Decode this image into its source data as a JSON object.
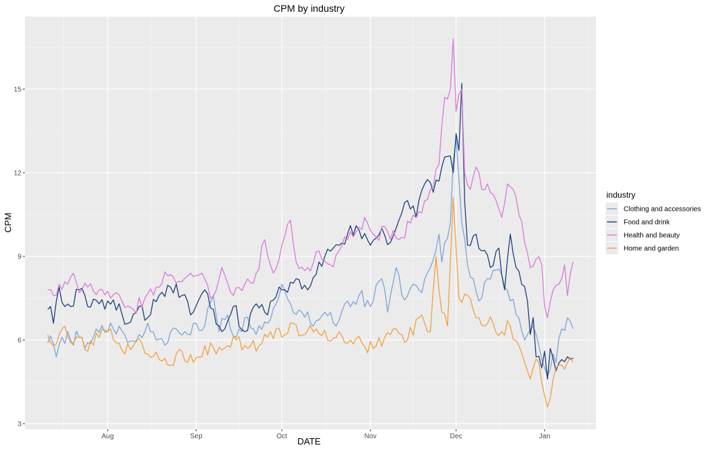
{
  "chart_data": {
    "type": "line",
    "title": "CPM by industry",
    "xlabel": "DATE",
    "ylabel": "CPM",
    "x_start": "2023-07-11",
    "x_end": "2024-01-11",
    "xlim": [
      "2023-07-03",
      "2024-01-19"
    ],
    "ylim": [
      2.8,
      17.6
    ],
    "yticks": [
      3,
      6,
      9,
      12,
      15
    ],
    "xticks": [
      {
        "label": "Aug",
        "date": "2023-08-01"
      },
      {
        "label": "Sep",
        "date": "2023-09-01"
      },
      {
        "label": "Oct",
        "date": "2023-10-01"
      },
      {
        "label": "Nov",
        "date": "2023-11-01"
      },
      {
        "label": "Dec",
        "date": "2023-12-01"
      },
      {
        "label": "Jan",
        "date": "2024-01-01"
      }
    ],
    "grid": true,
    "legend_title": "industry",
    "legend_position": "right",
    "series": [
      {
        "name": "Clothing and accessories",
        "color": "#7ba4d8",
        "keypoints": [
          [
            "2023-07-11",
            5.9
          ],
          [
            "2023-07-13",
            5.85
          ],
          [
            "2023-07-14",
            5.4
          ],
          [
            "2023-07-16",
            6.1
          ],
          [
            "2023-07-19",
            6.0
          ],
          [
            "2023-07-22",
            6.1
          ],
          [
            "2023-07-25",
            5.9
          ],
          [
            "2023-07-28",
            6.4
          ],
          [
            "2023-08-01",
            6.3
          ],
          [
            "2023-08-05",
            6.5
          ],
          [
            "2023-08-08",
            5.9
          ],
          [
            "2023-08-12",
            6.2
          ],
          [
            "2023-08-15",
            6.6
          ],
          [
            "2023-08-18",
            6.0
          ],
          [
            "2023-08-22",
            5.9
          ],
          [
            "2023-08-25",
            6.4
          ],
          [
            "2023-08-28",
            6.3
          ],
          [
            "2023-09-01",
            6.6
          ],
          [
            "2023-09-04",
            6.5
          ],
          [
            "2023-09-07",
            7.6
          ],
          [
            "2023-09-09",
            6.3
          ],
          [
            "2023-09-12",
            6.9
          ],
          [
            "2023-09-15",
            6.1
          ],
          [
            "2023-09-18",
            6.8
          ],
          [
            "2023-09-22",
            6.2
          ],
          [
            "2023-09-26",
            6.6
          ],
          [
            "2023-09-29",
            7.3
          ],
          [
            "2023-10-01",
            8.0
          ],
          [
            "2023-10-04",
            7.3
          ],
          [
            "2023-10-08",
            7.0
          ],
          [
            "2023-10-12",
            6.5
          ],
          [
            "2023-10-16",
            7.0
          ],
          [
            "2023-10-20",
            6.5
          ],
          [
            "2023-10-24",
            7.4
          ],
          [
            "2023-10-28",
            7.6
          ],
          [
            "2023-11-01",
            7.2
          ],
          [
            "2023-11-05",
            8.2
          ],
          [
            "2023-11-07",
            7.0
          ],
          [
            "2023-11-10",
            8.6
          ],
          [
            "2023-11-12",
            7.6
          ],
          [
            "2023-11-16",
            8.0
          ],
          [
            "2023-11-19",
            7.7
          ],
          [
            "2023-11-22",
            8.6
          ],
          [
            "2023-11-25",
            9.8
          ],
          [
            "2023-11-26",
            8.8
          ],
          [
            "2023-11-29",
            10.2
          ],
          [
            "2023-11-30",
            12.4
          ],
          [
            "2023-12-01",
            13.2
          ],
          [
            "2023-12-02",
            11.8
          ],
          [
            "2023-12-03",
            10.2
          ],
          [
            "2023-12-05",
            8.7
          ],
          [
            "2023-12-07",
            8.2
          ],
          [
            "2023-12-09",
            7.4
          ],
          [
            "2023-12-12",
            8.2
          ],
          [
            "2023-12-15",
            8.5
          ],
          [
            "2023-12-18",
            7.9
          ],
          [
            "2023-12-20",
            7.4
          ],
          [
            "2023-12-23",
            6.8
          ],
          [
            "2023-12-25",
            6.0
          ],
          [
            "2023-12-26",
            6.2
          ],
          [
            "2023-12-28",
            6.5
          ],
          [
            "2023-12-30",
            5.8
          ],
          [
            "2024-01-01",
            5.0
          ],
          [
            "2024-01-02",
            4.7
          ],
          [
            "2024-01-04",
            5.5
          ],
          [
            "2024-01-05",
            5.2
          ],
          [
            "2024-01-07",
            6.4
          ],
          [
            "2024-01-09",
            6.8
          ],
          [
            "2024-01-11",
            6.4
          ]
        ]
      },
      {
        "name": "Food and drink",
        "color": "#1f3d7a",
        "keypoints": [
          [
            "2023-07-11",
            7.1
          ],
          [
            "2023-07-12",
            7.2
          ],
          [
            "2023-07-13",
            6.6
          ],
          [
            "2023-07-15",
            7.9
          ],
          [
            "2023-07-17",
            7.2
          ],
          [
            "2023-07-19",
            7.2
          ],
          [
            "2023-07-22",
            7.8
          ],
          [
            "2023-07-25",
            7.2
          ],
          [
            "2023-07-29",
            7.3
          ],
          [
            "2023-08-01",
            7.4
          ],
          [
            "2023-08-05",
            7.3
          ],
          [
            "2023-08-08",
            6.6
          ],
          [
            "2023-08-12",
            7.2
          ],
          [
            "2023-08-15",
            6.8
          ],
          [
            "2023-08-19",
            7.6
          ],
          [
            "2023-08-23",
            7.9
          ],
          [
            "2023-08-27",
            7.6
          ],
          [
            "2023-08-31",
            7.0
          ],
          [
            "2023-09-04",
            7.8
          ],
          [
            "2023-09-07",
            7.1
          ],
          [
            "2023-09-10",
            6.3
          ],
          [
            "2023-09-14",
            7.2
          ],
          [
            "2023-09-18",
            6.3
          ],
          [
            "2023-09-22",
            7.3
          ],
          [
            "2023-09-26",
            6.9
          ],
          [
            "2023-09-30",
            7.9
          ],
          [
            "2023-10-02",
            7.8
          ],
          [
            "2023-10-06",
            8.2
          ],
          [
            "2023-10-10",
            7.8
          ],
          [
            "2023-10-14",
            8.8
          ],
          [
            "2023-10-19",
            9.3
          ],
          [
            "2023-10-24",
            9.8
          ],
          [
            "2023-10-27",
            10.1
          ],
          [
            "2023-11-01",
            9.4
          ],
          [
            "2023-11-05",
            10.0
          ],
          [
            "2023-11-08",
            9.5
          ],
          [
            "2023-11-11",
            10.3
          ],
          [
            "2023-11-14",
            11.0
          ],
          [
            "2023-11-17",
            10.4
          ],
          [
            "2023-11-20",
            11.6
          ],
          [
            "2023-11-23",
            11.3
          ],
          [
            "2023-11-26",
            12.2
          ],
          [
            "2023-11-29",
            12.6
          ],
          [
            "2023-11-30",
            12.0
          ],
          [
            "2023-12-01",
            13.4
          ],
          [
            "2023-12-02",
            12.8
          ],
          [
            "2023-12-03",
            15.2
          ],
          [
            "2023-12-04",
            11.0
          ],
          [
            "2023-12-05",
            9.4
          ],
          [
            "2023-12-08",
            9.8
          ],
          [
            "2023-12-10",
            9.2
          ],
          [
            "2023-12-13",
            8.6
          ],
          [
            "2023-12-16",
            9.3
          ],
          [
            "2023-12-18",
            7.8
          ],
          [
            "2023-12-20",
            9.8
          ],
          [
            "2023-12-22",
            8.6
          ],
          [
            "2023-12-24",
            8.0
          ],
          [
            "2023-12-26",
            7.4
          ],
          [
            "2023-12-27",
            6.2
          ],
          [
            "2023-12-28",
            6.8
          ],
          [
            "2023-12-29",
            5.4
          ],
          [
            "2023-12-31",
            5.0
          ],
          [
            "2024-01-01",
            5.6
          ],
          [
            "2024-01-02",
            4.6
          ],
          [
            "2024-01-03",
            5.7
          ],
          [
            "2024-01-05",
            4.9
          ],
          [
            "2024-01-07",
            5.3
          ],
          [
            "2024-01-09",
            5.4
          ],
          [
            "2024-01-11",
            5.35
          ]
        ]
      },
      {
        "name": "Health and beauty",
        "color": "#d879d8",
        "keypoints": [
          [
            "2023-07-11",
            7.8
          ],
          [
            "2023-07-13",
            7.6
          ],
          [
            "2023-07-15",
            8.0
          ],
          [
            "2023-07-18",
            8.0
          ],
          [
            "2023-07-20",
            8.4
          ],
          [
            "2023-07-22",
            7.7
          ],
          [
            "2023-07-25",
            7.9
          ],
          [
            "2023-07-29",
            7.8
          ],
          [
            "2023-08-02",
            7.5
          ],
          [
            "2023-08-06",
            7.4
          ],
          [
            "2023-08-10",
            7.1
          ],
          [
            "2023-08-14",
            7.5
          ],
          [
            "2023-08-18",
            7.9
          ],
          [
            "2023-08-22",
            8.3
          ],
          [
            "2023-08-26",
            8.1
          ],
          [
            "2023-08-30",
            8.4
          ],
          [
            "2023-09-03",
            8.4
          ],
          [
            "2023-09-06",
            7.5
          ],
          [
            "2023-09-10",
            8.6
          ],
          [
            "2023-09-14",
            7.6
          ],
          [
            "2023-09-18",
            8.0
          ],
          [
            "2023-09-22",
            8.4
          ],
          [
            "2023-09-25",
            9.6
          ],
          [
            "2023-09-28",
            8.4
          ],
          [
            "2023-10-01",
            9.4
          ],
          [
            "2023-10-04",
            10.3
          ],
          [
            "2023-10-06",
            8.8
          ],
          [
            "2023-10-10",
            8.6
          ],
          [
            "2023-10-14",
            9.2
          ],
          [
            "2023-10-18",
            8.7
          ],
          [
            "2023-10-22",
            9.4
          ],
          [
            "2023-10-26",
            9.7
          ],
          [
            "2023-10-30",
            10.4
          ],
          [
            "2023-11-03",
            9.7
          ],
          [
            "2023-11-07",
            9.9
          ],
          [
            "2023-11-11",
            9.6
          ],
          [
            "2023-11-15",
            10.2
          ],
          [
            "2023-11-18",
            10.6
          ],
          [
            "2023-11-22",
            11.4
          ],
          [
            "2023-11-25",
            12.3
          ],
          [
            "2023-11-27",
            14.7
          ],
          [
            "2023-11-29",
            15.0
          ],
          [
            "2023-11-30",
            16.8
          ],
          [
            "2023-12-01",
            14.2
          ],
          [
            "2023-12-02",
            14.8
          ],
          [
            "2023-12-03",
            15.0
          ],
          [
            "2023-12-04",
            12.0
          ],
          [
            "2023-12-06",
            11.4
          ],
          [
            "2023-12-08",
            12.2
          ],
          [
            "2023-12-10",
            11.4
          ],
          [
            "2023-12-12",
            11.6
          ],
          [
            "2023-12-15",
            11.0
          ],
          [
            "2023-12-17",
            10.4
          ],
          [
            "2023-12-19",
            11.6
          ],
          [
            "2023-12-21",
            11.4
          ],
          [
            "2023-12-23",
            10.5
          ],
          [
            "2023-12-25",
            9.5
          ],
          [
            "2023-12-27",
            8.6
          ],
          [
            "2023-12-29",
            8.9
          ],
          [
            "2023-12-31",
            8.7
          ],
          [
            "2024-01-01",
            7.2
          ],
          [
            "2024-01-02",
            6.8
          ],
          [
            "2024-01-04",
            7.8
          ],
          [
            "2024-01-06",
            8.0
          ],
          [
            "2024-01-08",
            8.7
          ],
          [
            "2024-01-09",
            7.6
          ],
          [
            "2024-01-11",
            8.8
          ]
        ]
      },
      {
        "name": "Home and garden",
        "color": "#f0a040",
        "keypoints": [
          [
            "2023-07-11",
            6.2
          ],
          [
            "2023-07-13",
            5.8
          ],
          [
            "2023-07-15",
            6.2
          ],
          [
            "2023-07-17",
            6.5
          ],
          [
            "2023-07-19",
            5.9
          ],
          [
            "2023-07-22",
            6.1
          ],
          [
            "2023-07-25",
            5.6
          ],
          [
            "2023-07-29",
            6.1
          ],
          [
            "2023-08-01",
            6.3
          ],
          [
            "2023-08-04",
            5.9
          ],
          [
            "2023-08-07",
            5.5
          ],
          [
            "2023-08-11",
            6.0
          ],
          [
            "2023-08-15",
            5.5
          ],
          [
            "2023-08-19",
            5.3
          ],
          [
            "2023-08-23",
            5.1
          ],
          [
            "2023-08-27",
            5.6
          ],
          [
            "2023-08-31",
            5.2
          ],
          [
            "2023-09-04",
            5.8
          ],
          [
            "2023-09-08",
            5.5
          ],
          [
            "2023-09-12",
            5.8
          ],
          [
            "2023-09-15",
            6.0
          ],
          [
            "2023-09-19",
            5.7
          ],
          [
            "2023-09-23",
            5.8
          ],
          [
            "2023-09-27",
            6.3
          ],
          [
            "2023-10-01",
            6.1
          ],
          [
            "2023-10-05",
            6.6
          ],
          [
            "2023-10-09",
            6.2
          ],
          [
            "2023-10-13",
            6.4
          ],
          [
            "2023-10-17",
            6.0
          ],
          [
            "2023-10-21",
            6.3
          ],
          [
            "2023-10-25",
            6.0
          ],
          [
            "2023-10-29",
            5.9
          ],
          [
            "2023-11-02",
            5.7
          ],
          [
            "2023-11-06",
            6.1
          ],
          [
            "2023-11-10",
            6.4
          ],
          [
            "2023-11-14",
            6.0
          ],
          [
            "2023-11-18",
            6.8
          ],
          [
            "2023-11-22",
            6.3
          ],
          [
            "2023-11-24",
            9.0
          ],
          [
            "2023-11-26",
            7.0
          ],
          [
            "2023-11-28",
            6.5
          ],
          [
            "2023-11-30",
            11.1
          ],
          [
            "2023-12-01",
            9.3
          ],
          [
            "2023-12-02",
            7.5
          ],
          [
            "2023-12-05",
            7.6
          ],
          [
            "2023-12-08",
            6.8
          ],
          [
            "2023-12-11",
            6.5
          ],
          [
            "2023-12-14",
            6.6
          ],
          [
            "2023-12-17",
            6.3
          ],
          [
            "2023-12-20",
            6.5
          ],
          [
            "2023-12-23",
            5.8
          ],
          [
            "2023-12-25",
            5.2
          ],
          [
            "2023-12-27",
            4.6
          ],
          [
            "2023-12-28",
            5.0
          ],
          [
            "2023-12-30",
            5.2
          ],
          [
            "2024-01-01",
            4.0
          ],
          [
            "2024-01-02",
            3.6
          ],
          [
            "2024-01-04",
            4.6
          ],
          [
            "2024-01-05",
            5.0
          ],
          [
            "2024-01-07",
            5.1
          ],
          [
            "2024-01-09",
            5.2
          ],
          [
            "2024-01-11",
            5.2
          ]
        ]
      }
    ]
  }
}
